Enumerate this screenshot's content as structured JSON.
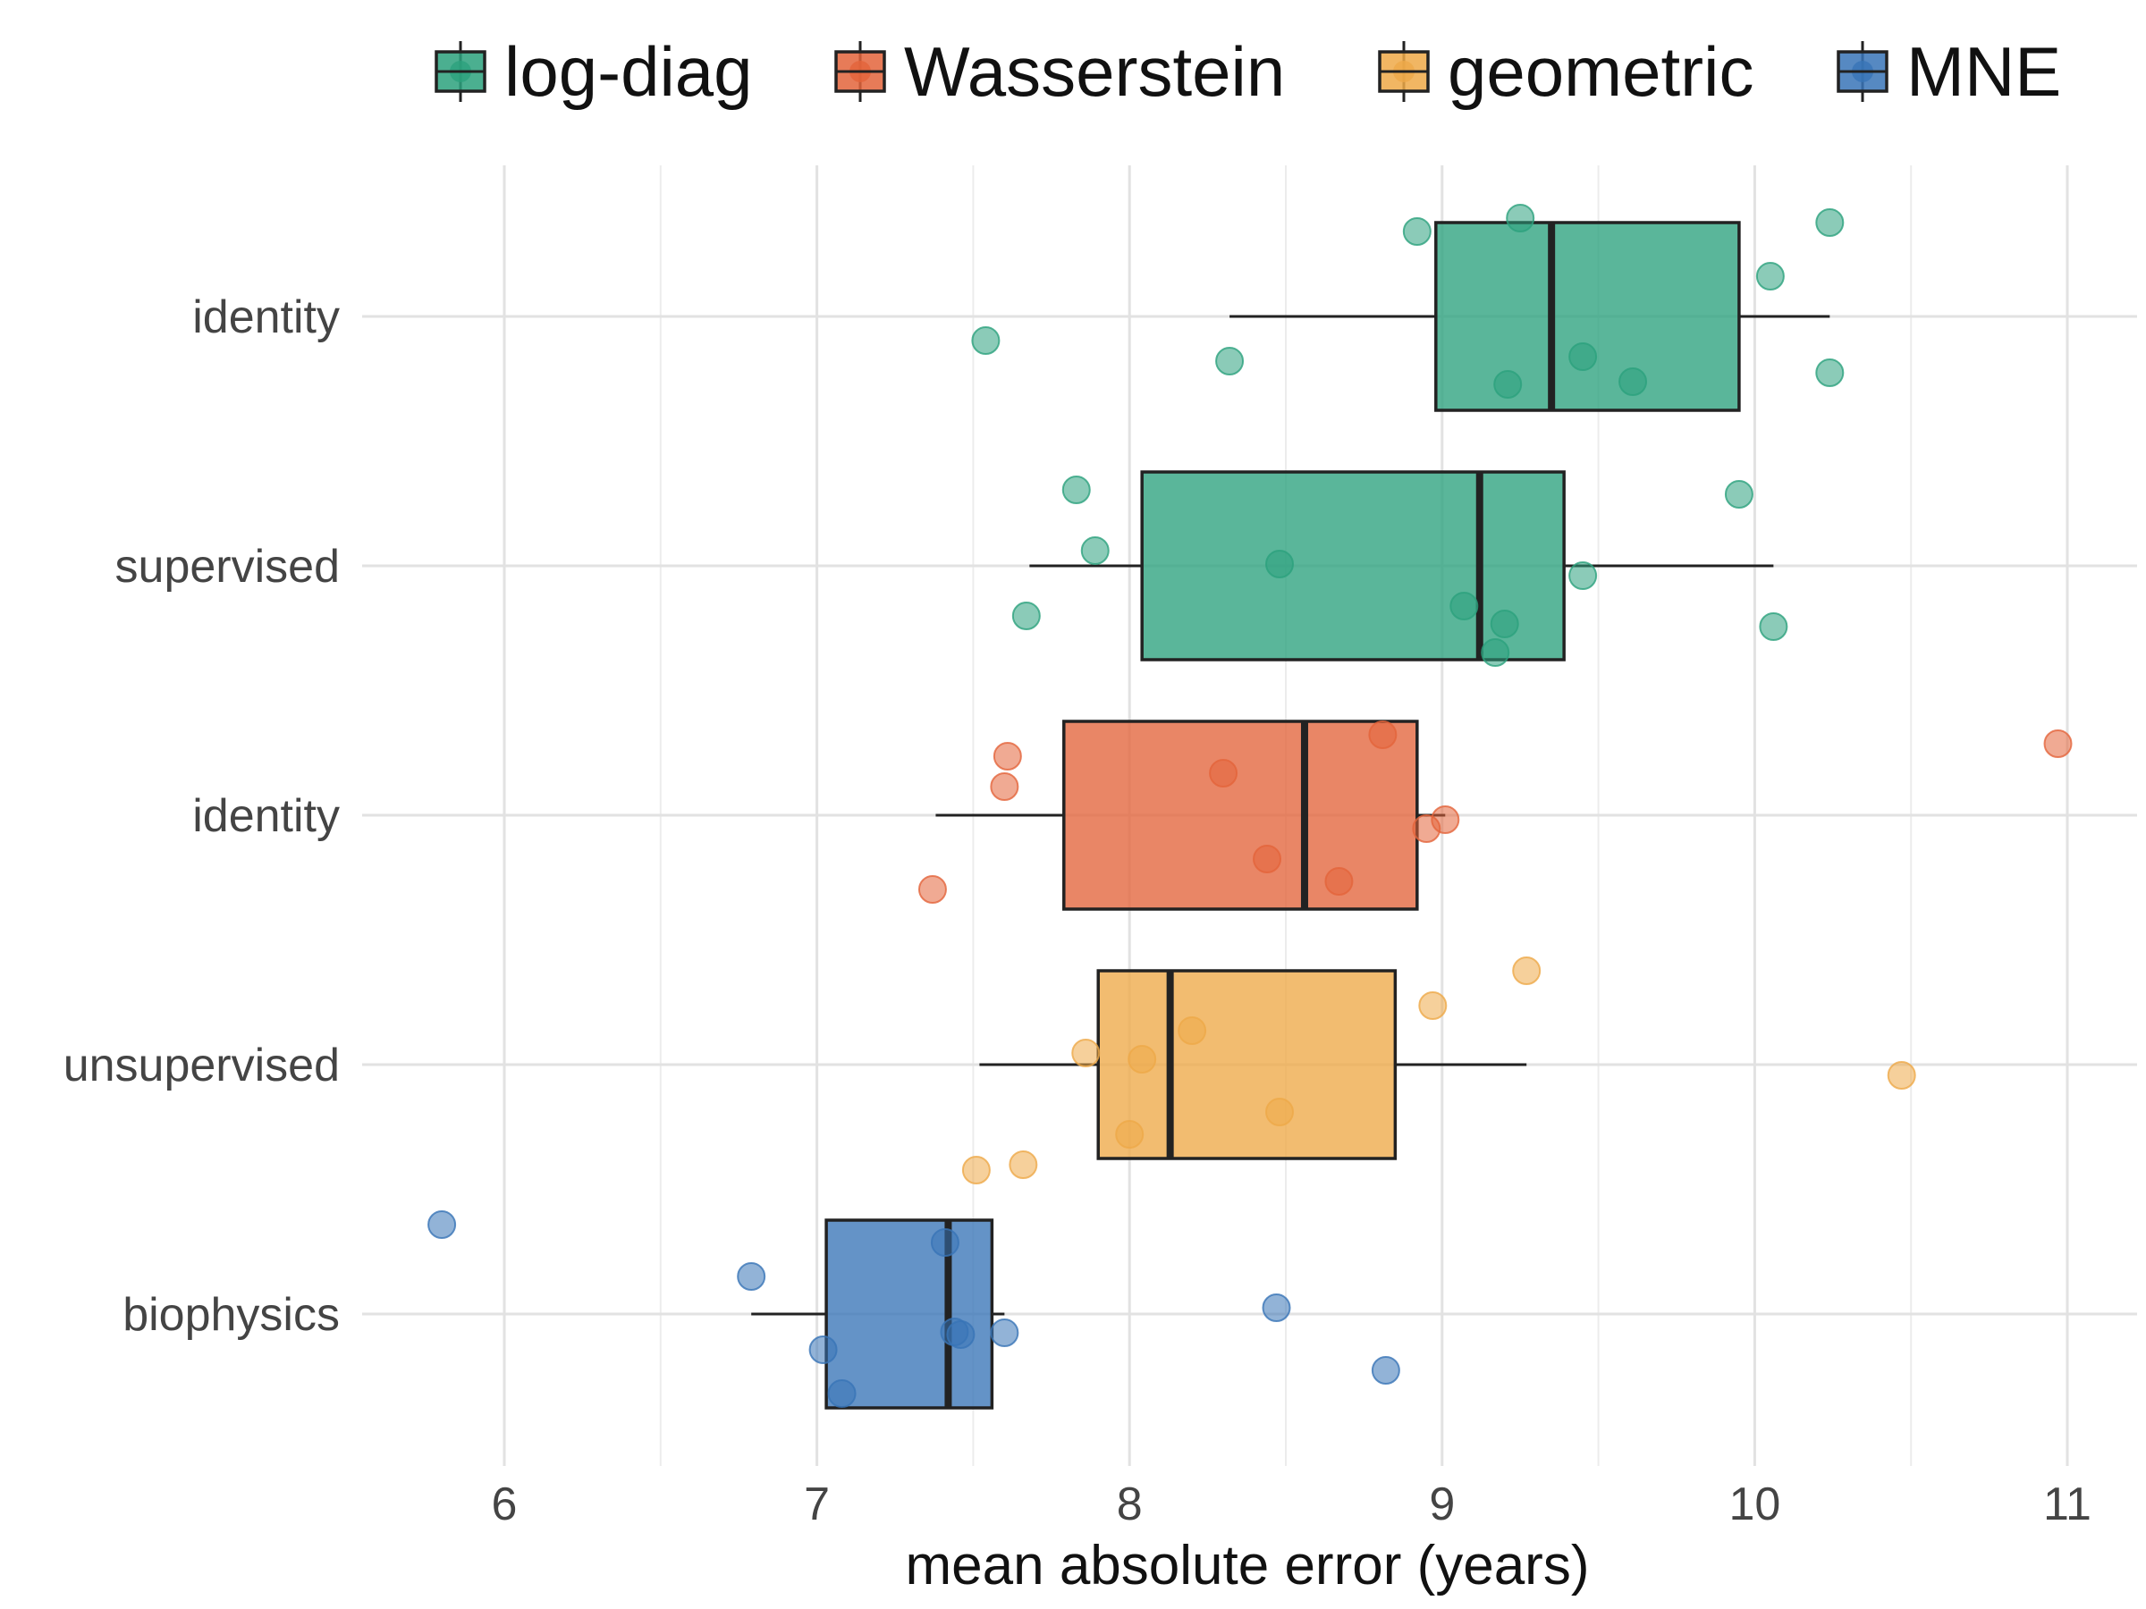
{
  "chart_data": {
    "type": "boxplot",
    "title": "",
    "xlabel": "mean absolute error (years)",
    "ylabel": "",
    "xlim": [
      5.5,
      11.2
    ],
    "xticks": [
      6,
      7,
      8,
      9,
      10,
      11
    ],
    "grid": true,
    "legend": {
      "position": "top",
      "entries": [
        "log-diag",
        "Wasserstein",
        "geometric",
        "MNE"
      ]
    },
    "colors": {
      "log-diag": "#2ca17d",
      "Wasserstein": "#e3643b",
      "geometric": "#eea948",
      "MNE": "#3874b7"
    },
    "categories": [
      "identity",
      "supervised",
      "identity",
      "unsupervised",
      "biophysics"
    ],
    "series": [
      {
        "name": "log-diag",
        "category": "identity",
        "box": {
          "whisker_low": 8.32,
          "q1": 8.98,
          "median": 9.35,
          "q3": 9.95,
          "whisker_high": 10.24
        },
        "points": [
          8.92,
          9.25,
          10.24,
          10.05,
          7.54,
          8.32,
          9.45,
          9.21,
          9.61,
          10.24
        ]
      },
      {
        "name": "log-diag",
        "category": "supervised",
        "box": {
          "whisker_low": 7.68,
          "q1": 8.04,
          "median": 9.12,
          "q3": 9.39,
          "whisker_high": 10.06
        },
        "points": [
          7.83,
          9.95,
          7.89,
          8.48,
          9.45,
          7.67,
          9.07,
          9.2,
          10.06,
          9.17
        ]
      },
      {
        "name": "Wasserstein",
        "category": "identity",
        "box": {
          "whisker_low": 7.38,
          "q1": 7.79,
          "median": 8.56,
          "q3": 8.92,
          "whisker_high": 9.01
        },
        "points": [
          8.81,
          7.61,
          8.3,
          7.6,
          10.97,
          9.01,
          8.95,
          8.44,
          8.67,
          7.37
        ]
      },
      {
        "name": "geometric",
        "category": "unsupervised",
        "box": {
          "whisker_low": 7.52,
          "q1": 7.9,
          "median": 8.13,
          "q3": 8.85,
          "whisker_high": 9.27
        },
        "points": [
          9.27,
          8.97,
          8.2,
          7.86,
          8.04,
          10.47,
          8.48,
          8.0,
          7.51,
          7.66
        ]
      },
      {
        "name": "MNE",
        "category": "biophysics",
        "box": {
          "whisker_low": 6.79,
          "q1": 7.03,
          "median": 7.42,
          "q3": 7.56,
          "whisker_high": 7.6
        },
        "points": [
          5.8,
          7.41,
          6.79,
          8.47,
          7.44,
          7.6,
          7.46,
          7.02,
          7.08,
          8.82
        ]
      }
    ]
  }
}
